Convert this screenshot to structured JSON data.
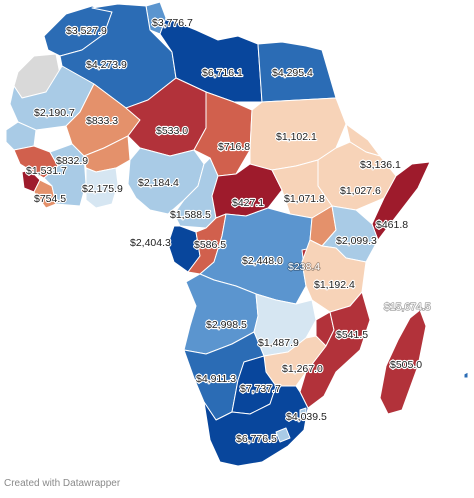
{
  "colors": {
    "dark_blue": "#08469c",
    "blue": "#2b6cb5",
    "mid_blue": "#5b95cf",
    "light_blue": "#a9cbe6",
    "pale_blue": "#d6e6f2",
    "pale_orange": "#f7d3b8",
    "orange": "#e4916b",
    "red_orange": "#d1604d",
    "red": "#b2323a",
    "dark_red": "#9e1b2c",
    "no_data": "#d9d9d9"
  },
  "labels": {
    "morocco": "$3,527.9",
    "tunisia": "$3,776.7",
    "algeria": "$4,273.9",
    "libya": "$6,716.1",
    "egypt": "$4,295.4",
    "mauritania": "$2,190.7",
    "mali": "$833.3",
    "niger": "$533.0",
    "chad": "$716.8",
    "sudan": "$1,102.1",
    "eritrea": "$3,136.1",
    "guinea": "$832.9",
    "sierra_leone": "$1,531.7",
    "liberia": "$754.5",
    "cote_divoire": "$2,175.9",
    "nigeria": "$2,184.4",
    "car": "$427.1",
    "south_sudan": "$1,071.8",
    "ethiopia": "$1,027.6",
    "somalia": "$461.8",
    "cameroon": "$1,588.5",
    "gabon": "$2,404.3",
    "congo": "$586.5",
    "drc": "$2,448.0",
    "kenya": "$2,099.3",
    "rwanda": "$238.4",
    "tanzania": "$1,192.4",
    "seychelles": "$15,674.5",
    "angola": "$2,998.5",
    "malawi": "$541.5",
    "zambia": "$1,487.9",
    "madagascar": "$505.0",
    "zimbabwe": "$1,267.0",
    "namibia": "$4,911.3",
    "botswana": "$7,737.7",
    "mozambique": "$4,039.5",
    "south_africa": "$6,776.5"
  },
  "footer": {
    "credit": "Created with Datawrapper"
  }
}
